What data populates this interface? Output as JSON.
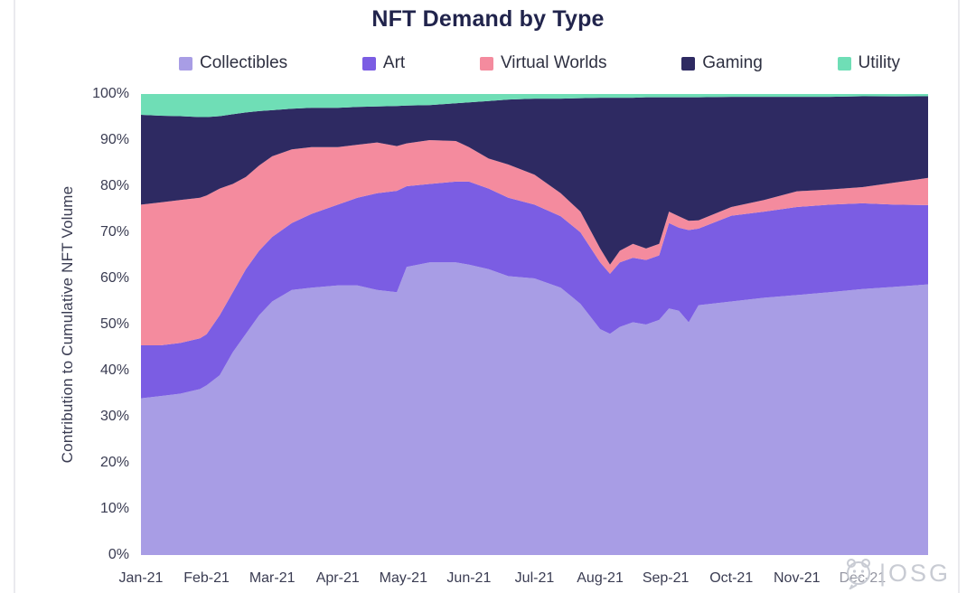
{
  "title": "NFT Demand by Type",
  "watermark": {
    "bar": "|",
    "letters": "OSG"
  },
  "chart_data": {
    "type": "area",
    "stacked": true,
    "title": "NFT Demand by Type",
    "xlabel": "",
    "ylabel": "Contribution to Cumulative NFT Volume",
    "ylim": [
      0,
      100
    ],
    "grid": false,
    "legend_position": "top",
    "unit": "%",
    "x_unit": "months since Jan-21 (fractional)",
    "x_tick_labels": [
      "Jan-21",
      "Feb-21",
      "Mar-21",
      "Apr-21",
      "May-21",
      "Jun-21",
      "Jul-21",
      "Aug-21",
      "Sep-21",
      "Oct-21",
      "Nov-21",
      "Dec-21"
    ],
    "y_tick_labels": [
      "0%",
      "10%",
      "20%",
      "30%",
      "40%",
      "50%",
      "60%",
      "70%",
      "80%",
      "90%",
      "100%"
    ],
    "x": [
      0,
      0.3,
      0.6,
      0.9,
      1.0,
      1.2,
      1.4,
      1.6,
      1.8,
      2.0,
      2.3,
      2.6,
      3.0,
      3.3,
      3.6,
      3.9,
      4.05,
      4.4,
      4.8,
      5.0,
      5.3,
      5.6,
      6.0,
      6.4,
      6.7,
      7.0,
      7.15,
      7.3,
      7.5,
      7.7,
      7.9,
      8.05,
      8.2,
      8.35,
      8.5,
      9.0,
      9.5,
      10.0,
      10.5,
      11.0,
      11.5,
      12.0
    ],
    "series": [
      {
        "name": "Collectibles",
        "color": "#a89de5",
        "values": [
          34,
          34.5,
          35,
          36,
          36.8,
          39,
          44,
          48,
          52,
          55,
          57.5,
          58,
          58.5,
          58.5,
          57.5,
          57,
          62.5,
          63.5,
          63.5,
          63,
          62,
          60.5,
          60,
          58,
          54.5,
          49,
          48,
          49.5,
          50.5,
          50,
          51,
          53.5,
          53,
          50.5,
          54.2,
          55,
          55.8,
          56.4,
          57,
          57.7,
          58.2,
          58.7
        ]
      },
      {
        "name": "Art",
        "color": "#7b5de3",
        "values": [
          11.5,
          11,
          11,
          11,
          11.1,
          13,
          13,
          14,
          14,
          14,
          14.5,
          16,
          17.5,
          19,
          21,
          22,
          17.5,
          17,
          17.5,
          18,
          17.5,
          17,
          16,
          15.5,
          15.5,
          14.5,
          13,
          14,
          14,
          14,
          14,
          18.5,
          18,
          20,
          16.6,
          18.6,
          18.7,
          19.1,
          19,
          18.6,
          17.8,
          17.2
        ]
      },
      {
        "name": "Virtual Worlds",
        "color": "#f48b9e",
        "values": [
          30.5,
          31,
          31,
          30.5,
          30.1,
          27.5,
          23.5,
          20,
          18.5,
          17.5,
          16,
          14.5,
          12.5,
          11.5,
          11,
          9.7,
          9.3,
          9.5,
          8.8,
          7.5,
          6.5,
          7.2,
          6.5,
          5,
          4.5,
          3,
          2,
          2.5,
          3,
          2.5,
          2.5,
          2.5,
          2.5,
          2,
          1.8,
          1.9,
          2.5,
          3.4,
          3.3,
          3.5,
          4.8,
          5.9
        ]
      },
      {
        "name": "Gaming",
        "color": "#2e2a62",
        "values": [
          19.5,
          18.8,
          18.2,
          17.5,
          17,
          15.7,
          15.1,
          14,
          11.8,
          10,
          8.8,
          8.5,
          8.5,
          8.2,
          7.8,
          8.7,
          8.2,
          7.6,
          8.2,
          9.7,
          12.5,
          14.1,
          16.5,
          20.5,
          24.6,
          32.7,
          36.2,
          33.2,
          31.7,
          32.8,
          31.8,
          24.8,
          25.8,
          26.8,
          26.7,
          23.9,
          22.4,
          20.5,
          20.1,
          19.7,
          18.7,
          17.7
        ]
      },
      {
        "name": "Utility",
        "color": "#6fdeb6",
        "values": [
          4.5,
          4.7,
          4.8,
          5,
          5,
          4.8,
          4.4,
          4,
          3.7,
          3.5,
          3.2,
          3,
          3,
          2.8,
          2.7,
          2.6,
          2.5,
          2.4,
          2,
          1.8,
          1.5,
          1.2,
          1,
          1,
          0.9,
          0.8,
          0.8,
          0.8,
          0.8,
          0.7,
          0.7,
          0.7,
          0.7,
          0.7,
          0.7,
          0.6,
          0.6,
          0.6,
          0.6,
          0.5,
          0.5,
          0.5
        ]
      }
    ]
  }
}
